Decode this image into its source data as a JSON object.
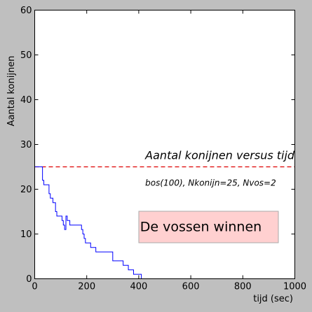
{
  "chart_data": {
    "type": "line",
    "xlabel": "tijd (sec)",
    "ylabel": "Aantal konijnen",
    "xlim": [
      0,
      1000
    ],
    "ylim": [
      0,
      60
    ],
    "xticks": [
      0,
      200,
      400,
      600,
      800,
      1000
    ],
    "yticks": [
      0,
      10,
      20,
      30,
      40,
      50,
      60
    ],
    "grid": false,
    "series": [
      {
        "color": "#0000ff",
        "step": true,
        "x": [
          0,
          25,
          30,
          35,
          45,
          50,
          55,
          60,
          65,
          70,
          80,
          85,
          95,
          100,
          105,
          110,
          115,
          120,
          125,
          135,
          165,
          180,
          185,
          190,
          195,
          200,
          215,
          225,
          235,
          265,
          300,
          330,
          340,
          360,
          380,
          410,
          420,
          1000
        ],
        "y": [
          25,
          25,
          22,
          21,
          21,
          21,
          19,
          18,
          18,
          17,
          15,
          14,
          14,
          14,
          13,
          12,
          11,
          14,
          13,
          12,
          12,
          11,
          10,
          9,
          8,
          8,
          7,
          7,
          6,
          6,
          4,
          4,
          3,
          2,
          1,
          0,
          0,
          0
        ]
      }
    ],
    "reference_line": {
      "y": 25,
      "color": "#dd0000",
      "style": "dashed"
    },
    "annotations": [
      {
        "text": "Aantal konijnen versus tijd",
        "x": 425,
        "y": 26.7
      },
      {
        "text": "bos(100), Nkonijn=25, Nvos=2",
        "x": 425,
        "y": 20.8
      }
    ],
    "status_box": {
      "text": "De vossen winnen",
      "fill": "#ffd0d0",
      "x": 405,
      "y": 10.6
    }
  }
}
